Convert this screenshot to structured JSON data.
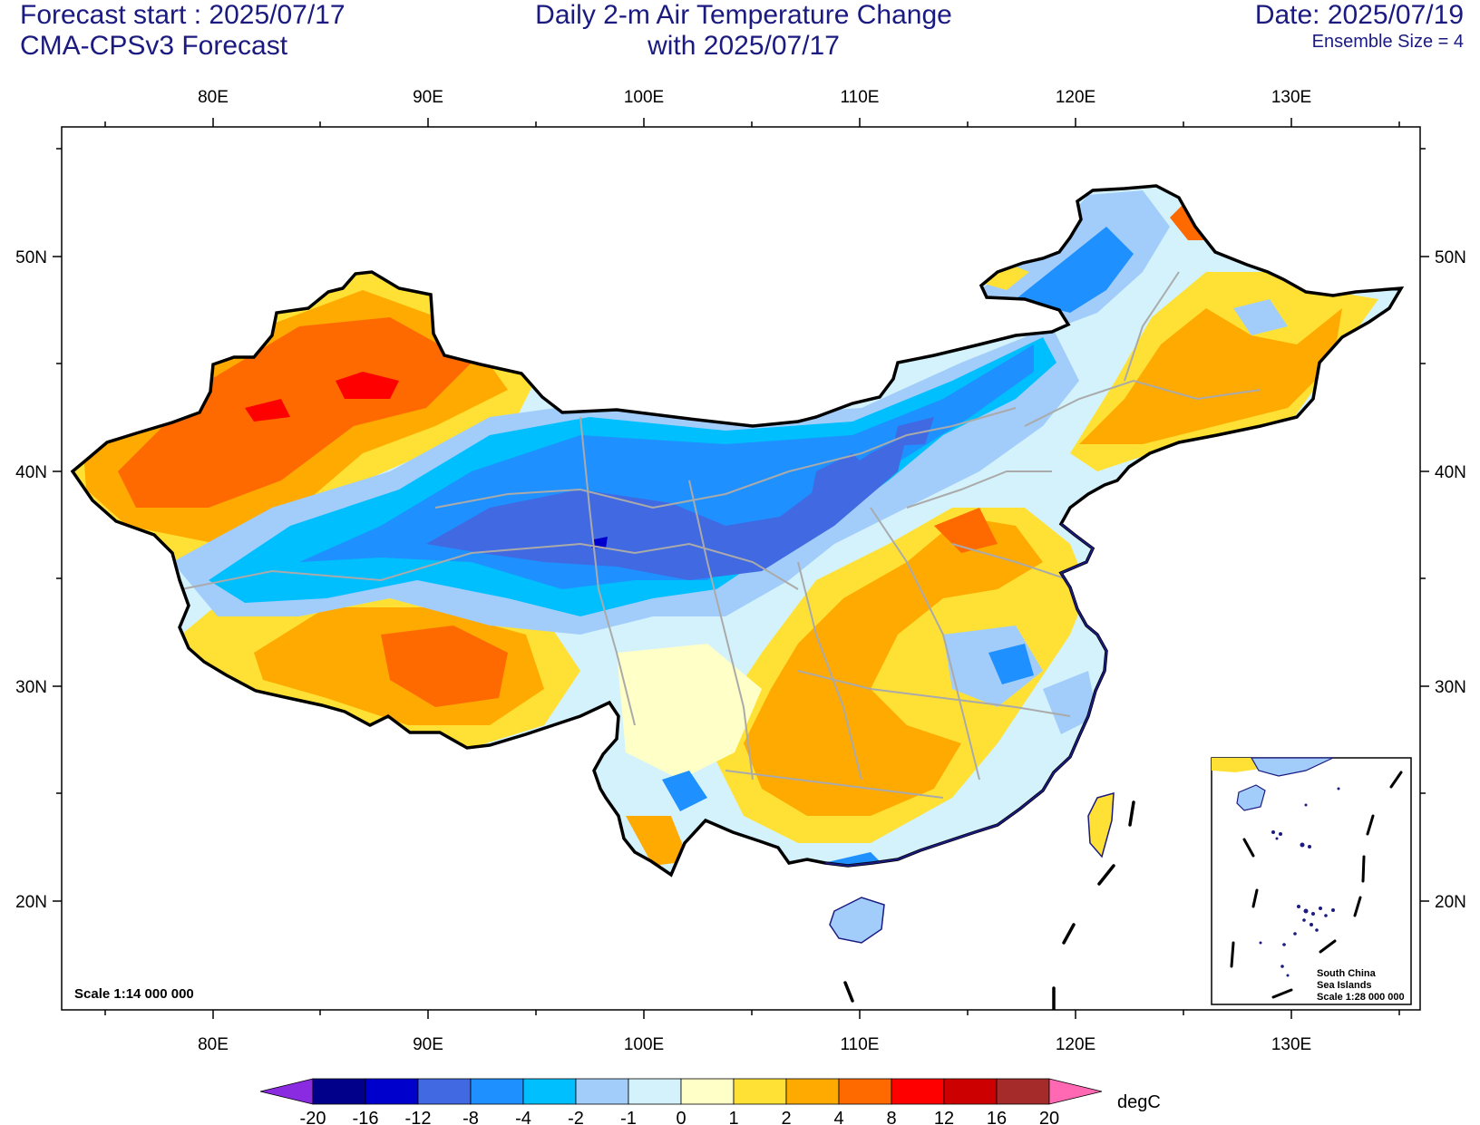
{
  "header": {
    "forecast_start": "Forecast start : 2025/07/17",
    "model": "CMA-CPSv3 Forecast",
    "title_line1": "Daily 2-m Air Temperature Change",
    "title_line2": "with 2025/07/17",
    "date": "Date: 2025/07/19",
    "ensemble": "Ensemble Size = 4"
  },
  "axes": {
    "lon_labels": [
      "80E",
      "90E",
      "100E",
      "110E",
      "120E",
      "130E"
    ],
    "lat_labels": [
      "50N",
      "40N",
      "30N",
      "20N"
    ]
  },
  "scale_main": "Scale 1:14 000 000",
  "inset": {
    "line1": "South China",
    "line2": "Sea Islands",
    "line3": "Scale 1:28 000 000"
  },
  "colorbar": {
    "unit": "degC",
    "labels": [
      "-20",
      "-16",
      "-12",
      "-8",
      "-4",
      "-2",
      "-1",
      "0",
      "1",
      "2",
      "4",
      "8",
      "12",
      "16",
      "20"
    ],
    "colors": [
      "#8a2be2",
      "#00008b",
      "#0000cd",
      "#4169e1",
      "#1e90ff",
      "#00bfff",
      "#a2cdfa",
      "#d3f2fb",
      "#ffffc8",
      "#ffe135",
      "#ffaa00",
      "#ff6a00",
      "#ff0000",
      "#cc0000",
      "#a52a2a",
      "#ff69b4"
    ]
  },
  "chart_data": {
    "type": "heatmap",
    "title": "Daily 2-m Air Temperature Change",
    "subtitle": "with 2025/07/17",
    "xlabel": "",
    "ylabel": "",
    "xlim": [
      73,
      136
    ],
    "ylim": [
      15,
      56
    ],
    "x_ticks": [
      "80E",
      "90E",
      "100E",
      "110E",
      "120E",
      "130E"
    ],
    "y_ticks": [
      "50N",
      "40N",
      "30N",
      "20N"
    ],
    "legend_unit": "degC",
    "legend_levels": [
      -20,
      -16,
      -12,
      -8,
      -4,
      -2,
      -1,
      0,
      1,
      2,
      4,
      8,
      12,
      16,
      20
    ],
    "legend_placement": "bottom"
  }
}
